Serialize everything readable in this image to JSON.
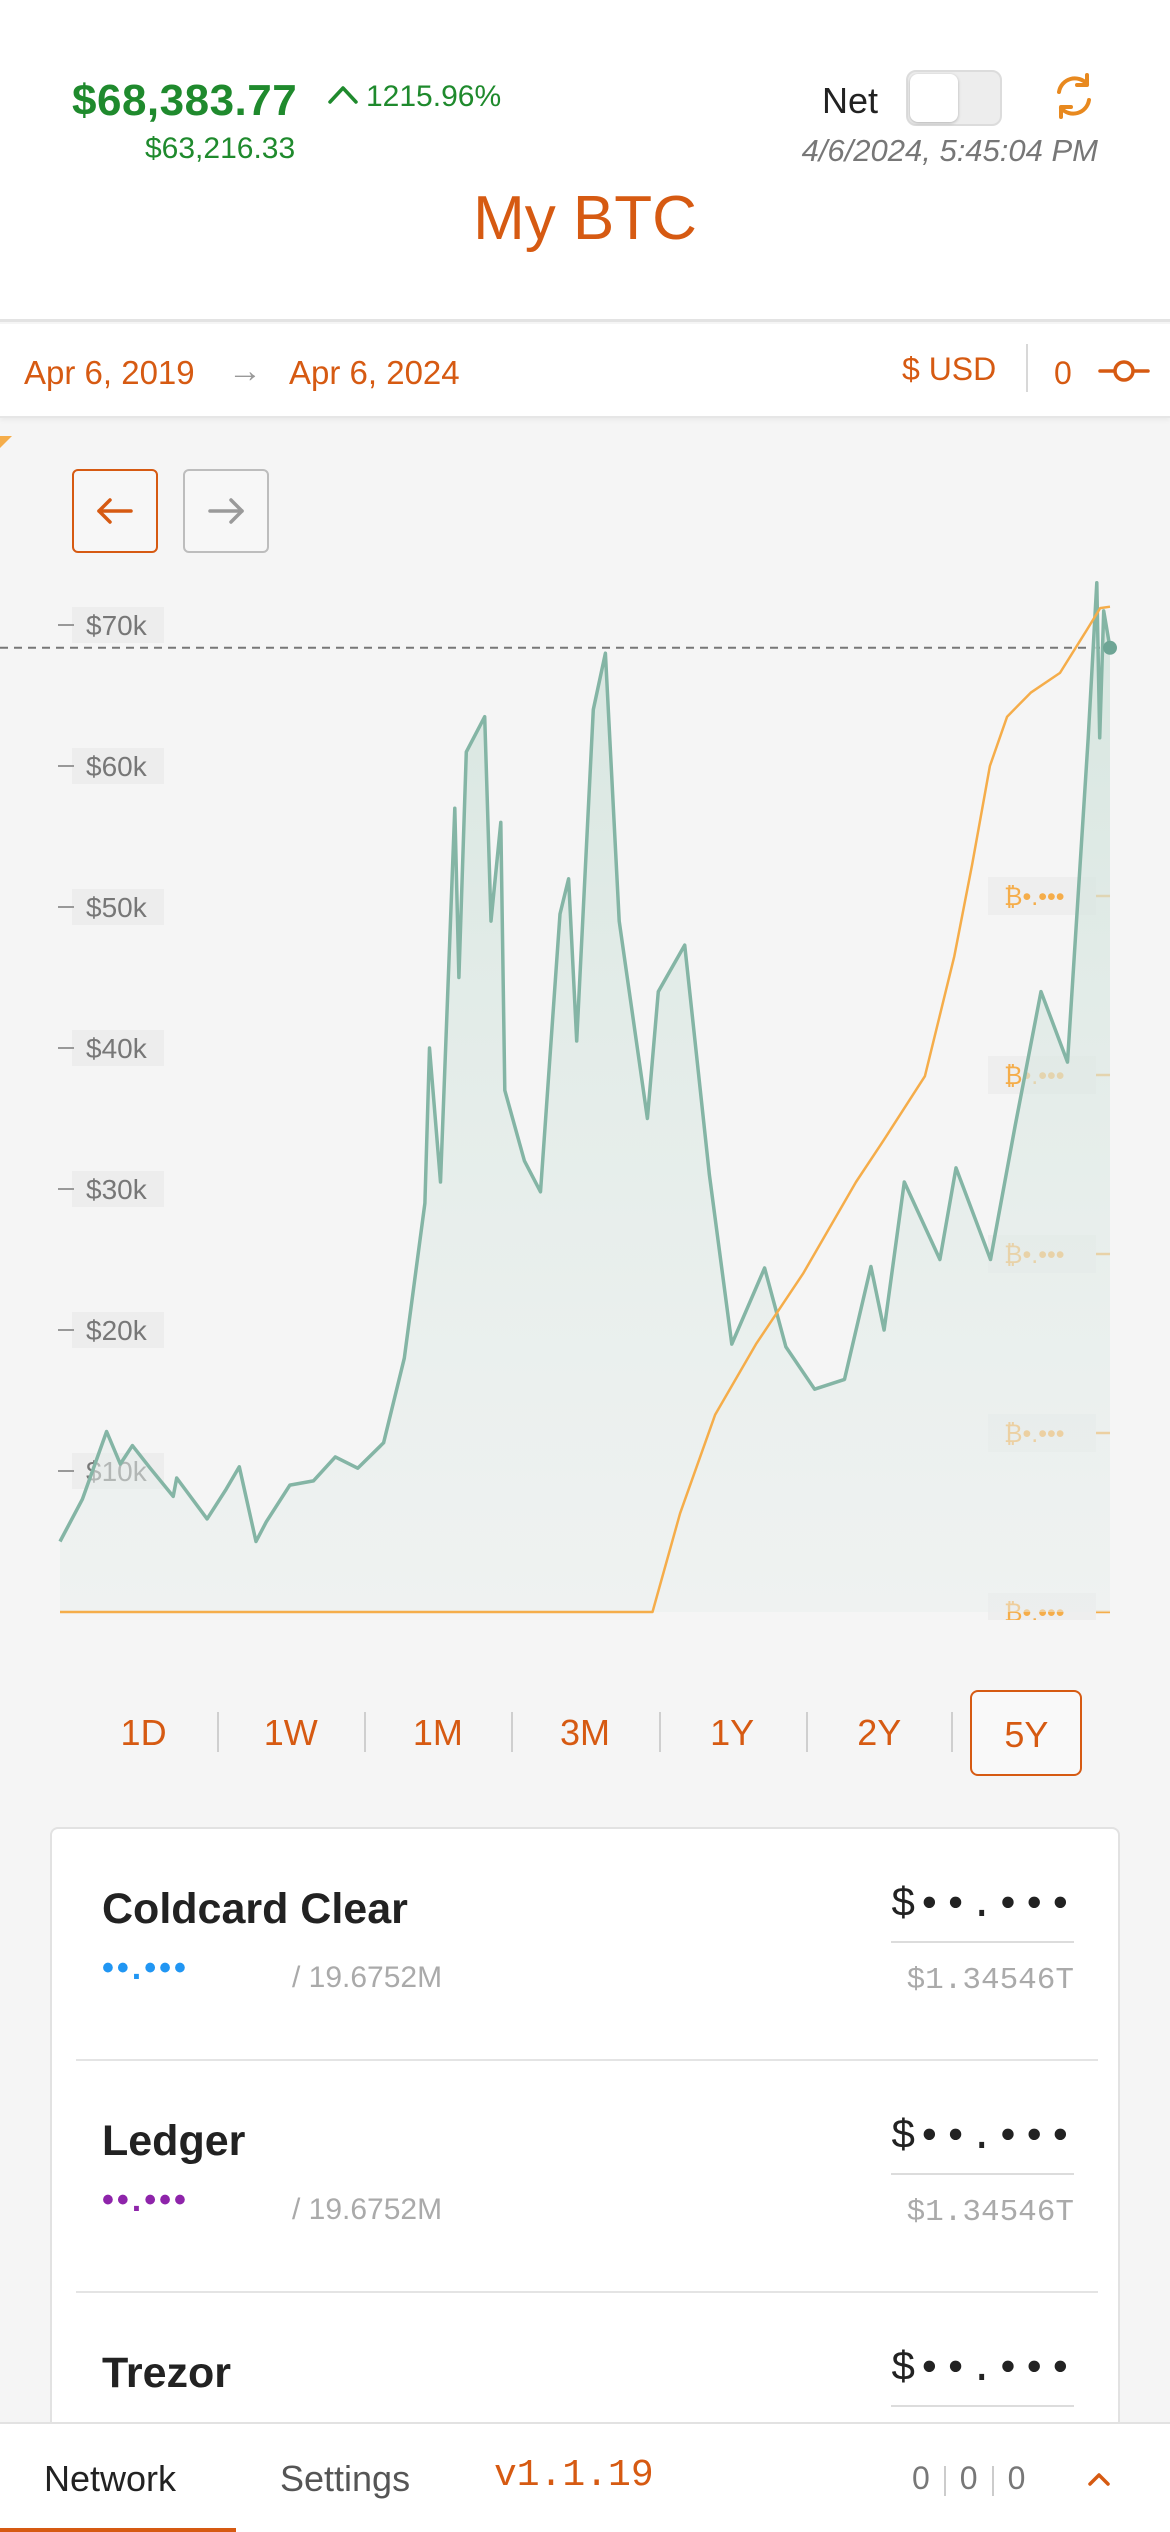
{
  "header": {
    "price": "$68,383.77",
    "change_pct": "1215.96%",
    "cost_basis": "$63,216.33",
    "net_label": "Net",
    "net_enabled": false,
    "timestamp": "4/6/2024, 5:45:04 PM",
    "title": "My BTC",
    "colors": {
      "positive": "#1f8a2d",
      "accent": "#d65a12"
    }
  },
  "range": {
    "start": "Apr 6, 2019",
    "arrow": "→",
    "end": "Apr 6, 2024",
    "currency": "$ USD",
    "offset": "0"
  },
  "chart_data": {
    "type": "line",
    "title": "",
    "xlabel": "",
    "ylabel": "",
    "xlim": [
      "2019-04-06",
      "2024-04-06"
    ],
    "ylim": [
      0,
      72000
    ],
    "y_ticks": [
      "$10k",
      "$20k",
      "$30k",
      "$40k",
      "$50k",
      "$60k",
      "$70k"
    ],
    "y_tick_values": [
      10000,
      20000,
      30000,
      40000,
      50000,
      60000,
      70000
    ],
    "reference_line": 68383.77,
    "secondary_axis_ticks": [
      "₿•.•••",
      "₿•.•••",
      "₿•.•••",
      "₿•.•••",
      "₿•.•••"
    ],
    "grid": false,
    "series": [
      {
        "color": "#84b5a5",
        "fill": true,
        "points": [
          [
            "2019-04-06",
            5000
          ],
          [
            "2019-05-15",
            8000
          ],
          [
            "2019-06-26",
            12800
          ],
          [
            "2019-07-20",
            10500
          ],
          [
            "2019-08-10",
            11800
          ],
          [
            "2019-09-10",
            10200
          ],
          [
            "2019-10-20",
            8200
          ],
          [
            "2019-10-26",
            9500
          ],
          [
            "2019-12-18",
            6600
          ],
          [
            "2020-01-20",
            8700
          ],
          [
            "2020-02-12",
            10300
          ],
          [
            "2020-03-12",
            5000
          ],
          [
            "2020-03-30",
            6400
          ],
          [
            "2020-05-10",
            9000
          ],
          [
            "2020-06-20",
            9300
          ],
          [
            "2020-07-28",
            11000
          ],
          [
            "2020-09-05",
            10200
          ],
          [
            "2020-10-20",
            12000
          ],
          [
            "2020-11-25",
            18000
          ],
          [
            "2020-12-31",
            29000
          ],
          [
            "2021-01-08",
            40000
          ],
          [
            "2021-01-27",
            30500
          ],
          [
            "2021-02-21",
            57000
          ],
          [
            "2021-02-28",
            45000
          ],
          [
            "2021-03-13",
            61000
          ],
          [
            "2021-04-14",
            63500
          ],
          [
            "2021-04-25",
            49000
          ],
          [
            "2021-05-12",
            56000
          ],
          [
            "2021-05-19",
            37000
          ],
          [
            "2021-06-22",
            32000
          ],
          [
            "2021-07-20",
            29800
          ],
          [
            "2021-08-23",
            49500
          ],
          [
            "2021-09-07",
            52000
          ],
          [
            "2021-09-21",
            40500
          ],
          [
            "2021-10-20",
            64000
          ],
          [
            "2021-11-10",
            68000
          ],
          [
            "2021-12-04",
            49000
          ],
          [
            "2022-01-22",
            35000
          ],
          [
            "2022-02-10",
            44000
          ],
          [
            "2022-03-28",
            47300
          ],
          [
            "2022-05-10",
            31000
          ],
          [
            "2022-06-18",
            19000
          ],
          [
            "2022-08-14",
            24400
          ],
          [
            "2022-09-20",
            18800
          ],
          [
            "2022-11-09",
            15800
          ],
          [
            "2022-12-31",
            16500
          ],
          [
            "2023-02-15",
            24500
          ],
          [
            "2023-03-10",
            20000
          ],
          [
            "2023-04-14",
            30500
          ],
          [
            "2023-06-15",
            25000
          ],
          [
            "2023-07-13",
            31500
          ],
          [
            "2023-09-11",
            25000
          ],
          [
            "2023-10-24",
            34500
          ],
          [
            "2023-12-08",
            44000
          ],
          [
            "2024-01-23",
            39000
          ],
          [
            "2024-02-28",
            62000
          ],
          [
            "2024-03-14",
            73000
          ],
          [
            "2024-03-19",
            62000
          ],
          [
            "2024-03-26",
            71000
          ],
          [
            "2024-04-06",
            68383.77
          ]
        ]
      },
      {
        "color": "#f5ad4a",
        "fill": false,
        "axis": "secondary",
        "points": [
          [
            "2019-04-06",
            0
          ],
          [
            "2022-01-31",
            0
          ],
          [
            "2022-03-20",
            7000
          ],
          [
            "2022-05-20",
            14000
          ],
          [
            "2022-07-30",
            19000
          ],
          [
            "2022-10-20",
            24000
          ],
          [
            "2023-01-20",
            30500
          ],
          [
            "2023-03-10",
            33500
          ],
          [
            "2023-05-20",
            38000
          ],
          [
            "2023-07-10",
            46500
          ],
          [
            "2023-08-10",
            53000
          ],
          [
            "2023-09-10",
            60000
          ],
          [
            "2023-10-10",
            63500
          ],
          [
            "2023-11-20",
            65200
          ],
          [
            "2024-01-10",
            66600
          ],
          [
            "2024-02-25",
            69600
          ],
          [
            "2024-03-20",
            71200
          ],
          [
            "2024-04-06",
            71300
          ]
        ]
      }
    ]
  },
  "periods": {
    "items": [
      "1D",
      "1W",
      "1M",
      "3M",
      "1Y",
      "2Y",
      "5Y"
    ],
    "active": "5Y"
  },
  "wallets": [
    {
      "name": "Coldcard Clear",
      "balance_hidden": "••.•••",
      "supply": "/ 19.6752M",
      "value_hidden": "$••.•••",
      "value_total": "$1.34546T",
      "color": "#2196f3"
    },
    {
      "name": "Ledger",
      "balance_hidden": "••.•••",
      "supply": "/ 19.6752M",
      "value_hidden": "$••.•••",
      "value_total": "$1.34546T",
      "color": "#8e24aa"
    },
    {
      "name": "Trezor",
      "value_hidden": "$••.•••"
    }
  ],
  "footer": {
    "network": "Network",
    "settings": "Settings",
    "version": "v1.1.19",
    "counts": [
      "0",
      "0",
      "0"
    ]
  }
}
